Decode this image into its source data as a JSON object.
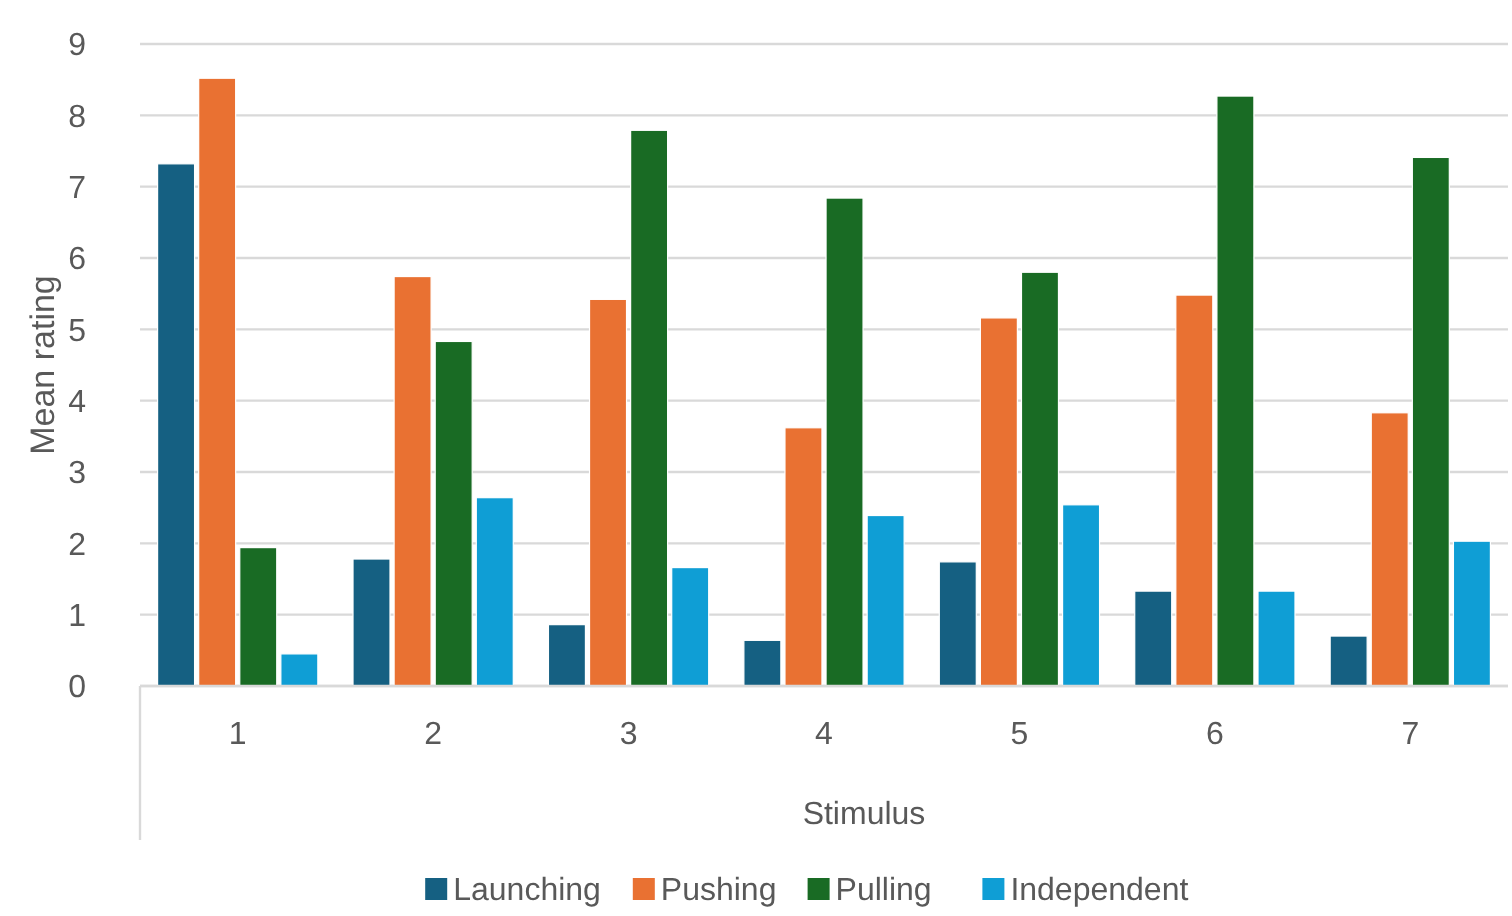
{
  "chart_data": {
    "type": "bar",
    "xlabel": "Stimulus",
    "ylabel": "Mean rating",
    "categories": [
      "1",
      "2",
      "3",
      "4",
      "5",
      "6",
      "7"
    ],
    "series": [
      {
        "name": "Launching",
        "color": "#156082",
        "values": [
          7.32,
          1.78,
          0.86,
          0.64,
          1.74,
          1.33,
          0.7
        ]
      },
      {
        "name": "Pushing",
        "color": "#e97132",
        "values": [
          8.52,
          5.74,
          5.42,
          3.62,
          5.16,
          5.48,
          3.83
        ]
      },
      {
        "name": "Pulling",
        "color": "#196b24",
        "values": [
          1.94,
          4.83,
          7.79,
          6.84,
          5.8,
          8.27,
          7.41
        ]
      },
      {
        "name": "Independent",
        "color": "#0f9ed5",
        "values": [
          0.45,
          2.64,
          1.66,
          2.39,
          2.54,
          1.33,
          2.03
        ]
      }
    ],
    "ylim": [
      0,
      9
    ],
    "yticks": [
      0,
      1,
      2,
      3,
      4,
      5,
      6,
      7,
      8,
      9
    ],
    "grid": "y",
    "legend": "bottom"
  }
}
